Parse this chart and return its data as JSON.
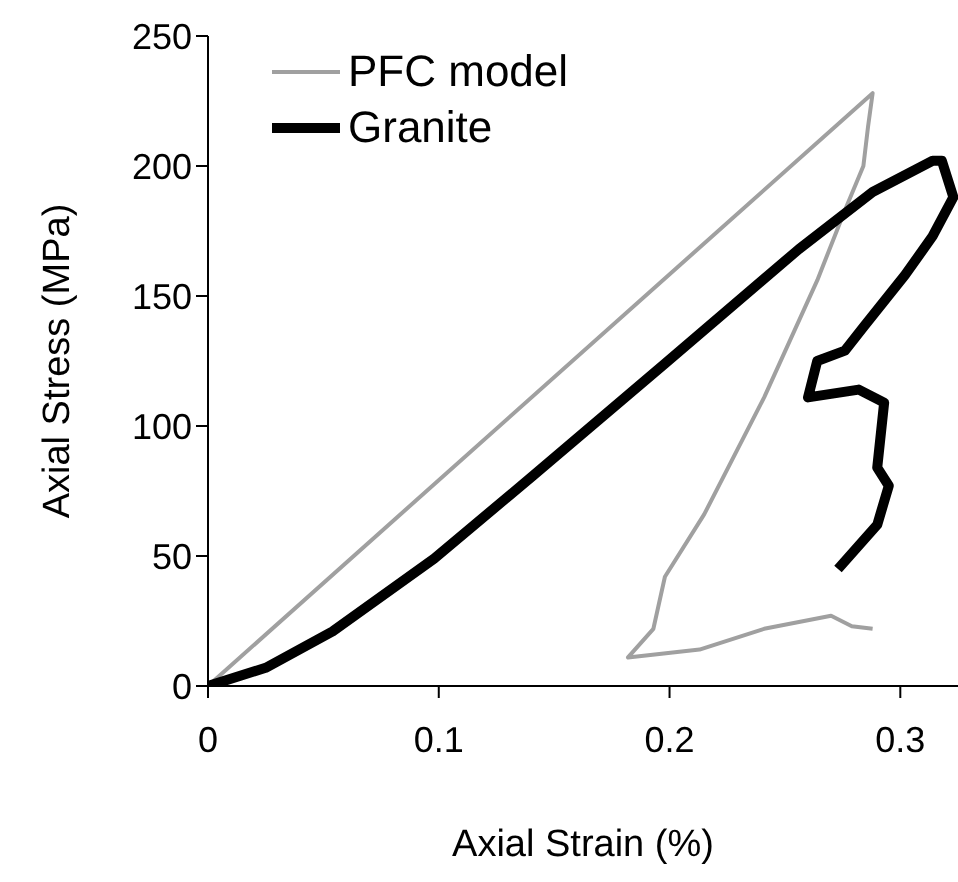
{
  "chart_data": {
    "type": "line",
    "xlabel": "Axial Strain (%)",
    "ylabel": "Axial Stress (MPa)",
    "xlim": [
      0,
      0.325
    ],
    "xticks": [
      0,
      0.1,
      0.2,
      0.3
    ],
    "ylim": [
      0,
      250
    ],
    "yticks": [
      0,
      50,
      100,
      150,
      200,
      250
    ],
    "grid": false,
    "legend": "top left",
    "marker": "none",
    "line_style": "solid",
    "series": [
      {
        "name": "PFC model",
        "color": "#a0a0a0",
        "x": [
          0,
          0.288,
          0.286,
          0.284,
          0.276,
          0.264,
          0.241,
          0.215,
          0.198,
          0.193,
          0.182,
          0.213,
          0.241,
          0.27,
          0.279,
          0.288
        ],
        "values": [
          0,
          228,
          215,
          200,
          183,
          156,
          111,
          66,
          42,
          22,
          11,
          14,
          22,
          27,
          23,
          22
        ]
      },
      {
        "name": "Granite",
        "color": "#000000",
        "x": [
          0,
          0.025,
          0.054,
          0.098,
          0.141,
          0.198,
          0.256,
          0.288,
          0.314,
          0.318,
          0.323,
          0.314,
          0.302,
          0.284,
          0.276,
          0.264,
          0.26,
          0.282,
          0.293,
          0.29,
          0.295,
          0.29,
          0.273
        ],
        "values": [
          0,
          7,
          21,
          49,
          81,
          124,
          168,
          190,
          202,
          202,
          188,
          173,
          158,
          138,
          129,
          125,
          111,
          114,
          109,
          84,
          77,
          62,
          45
        ]
      }
    ]
  }
}
